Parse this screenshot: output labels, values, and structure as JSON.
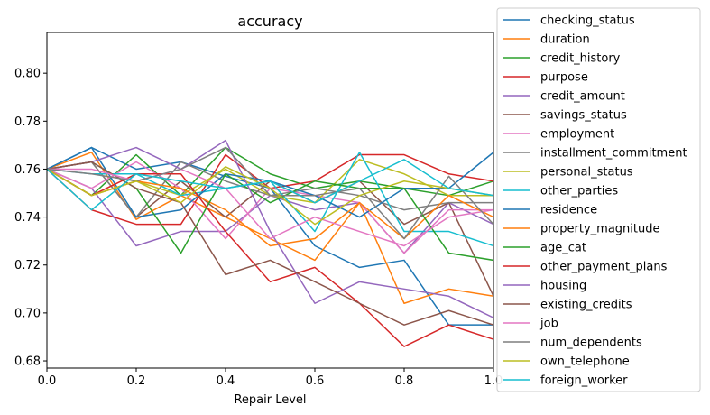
{
  "chart_data": {
    "type": "line",
    "title": "accuracy",
    "xlabel": "Repair Level",
    "ylabel": "",
    "xlim": [
      0.0,
      1.0
    ],
    "ylim": [
      0.677,
      0.817
    ],
    "xticks": [
      "0.0",
      "0.2",
      "0.4",
      "0.6",
      "0.8",
      "1.0"
    ],
    "yticks": [
      "0.68",
      "0.70",
      "0.72",
      "0.74",
      "0.76",
      "0.78",
      "0.80"
    ],
    "grid": false,
    "legend_position": "right",
    "x": [
      0.0,
      0.1,
      0.2,
      0.3,
      0.4,
      0.5,
      0.6,
      0.7,
      0.8,
      0.9,
      1.0
    ],
    "series": [
      {
        "name": "checking_status",
        "color": "#1f77b4",
        "values": [
          0.76,
          0.769,
          0.76,
          0.763,
          0.757,
          0.752,
          0.728,
          0.719,
          0.722,
          0.695,
          0.695
        ]
      },
      {
        "name": "duration",
        "color": "#ff7f0e",
        "values": [
          0.76,
          0.767,
          0.739,
          0.749,
          0.74,
          0.731,
          0.722,
          0.746,
          0.704,
          0.71,
          0.707
        ]
      },
      {
        "name": "credit_history",
        "color": "#2ca02c",
        "values": [
          0.76,
          0.749,
          0.766,
          0.749,
          0.769,
          0.758,
          0.752,
          0.755,
          0.752,
          0.749,
          0.755
        ]
      },
      {
        "name": "purpose",
        "color": "#d62728",
        "values": [
          0.76,
          0.743,
          0.737,
          0.737,
          0.766,
          0.752,
          0.755,
          0.766,
          0.766,
          0.758,
          0.755
        ]
      },
      {
        "name": "credit_amount",
        "color": "#9467bd",
        "values": [
          0.76,
          0.752,
          0.728,
          0.734,
          0.734,
          0.749,
          0.743,
          0.746,
          0.725,
          0.746,
          0.737
        ]
      },
      {
        "name": "savings_status",
        "color": "#8c564b",
        "values": [
          0.76,
          0.763,
          0.74,
          0.755,
          0.74,
          0.755,
          0.746,
          0.755,
          0.737,
          0.746,
          0.707
        ]
      },
      {
        "name": "employment",
        "color": "#e377c2",
        "values": [
          0.76,
          0.752,
          0.763,
          0.752,
          0.731,
          0.752,
          0.749,
          0.746,
          0.725,
          0.743,
          0.743
        ]
      },
      {
        "name": "installment_commitment",
        "color": "#7f7f7f",
        "values": [
          0.76,
          0.763,
          0.74,
          0.763,
          0.755,
          0.749,
          0.752,
          0.749,
          0.743,
          0.746,
          0.746
        ]
      },
      {
        "name": "personal_status",
        "color": "#bcbd22",
        "values": [
          0.76,
          0.749,
          0.755,
          0.749,
          0.76,
          0.749,
          0.746,
          0.764,
          0.758,
          0.749,
          0.749
        ]
      },
      {
        "name": "other_parties",
        "color": "#17becf",
        "values": [
          0.76,
          0.758,
          0.758,
          0.749,
          0.752,
          0.755,
          0.734,
          0.767,
          0.734,
          0.734,
          0.728
        ]
      },
      {
        "name": "residence",
        "color": "#1f77b4",
        "values": [
          0.76,
          0.769,
          0.74,
          0.743,
          0.758,
          0.755,
          0.749,
          0.74,
          0.752,
          0.752,
          0.767
        ]
      },
      {
        "name": "property_magnitude",
        "color": "#ff7f0e",
        "values": [
          0.76,
          0.749,
          0.755,
          0.752,
          0.743,
          0.728,
          0.731,
          0.746,
          0.731,
          0.749,
          0.74
        ]
      },
      {
        "name": "age_cat",
        "color": "#2ca02c",
        "values": [
          0.76,
          0.763,
          0.752,
          0.725,
          0.758,
          0.746,
          0.755,
          0.752,
          0.752,
          0.725,
          0.722
        ]
      },
      {
        "name": "other_payment_plans",
        "color": "#d62728",
        "values": [
          0.76,
          0.749,
          0.758,
          0.758,
          0.734,
          0.713,
          0.719,
          0.704,
          0.686,
          0.695,
          0.689
        ]
      },
      {
        "name": "housing",
        "color": "#9467bd",
        "values": [
          0.76,
          0.763,
          0.769,
          0.76,
          0.772,
          0.734,
          0.704,
          0.713,
          0.71,
          0.707,
          0.698
        ]
      },
      {
        "name": "existing_credits",
        "color": "#8c564b",
        "values": [
          0.76,
          0.763,
          0.752,
          0.746,
          0.716,
          0.722,
          0.713,
          0.704,
          0.695,
          0.701,
          0.695
        ]
      },
      {
        "name": "job",
        "color": "#e377c2",
        "values": [
          0.76,
          0.76,
          0.755,
          0.76,
          0.752,
          0.731,
          0.74,
          0.734,
          0.728,
          0.74,
          0.743
        ]
      },
      {
        "name": "num_dependents",
        "color": "#7f7f7f",
        "values": [
          0.76,
          0.758,
          0.755,
          0.76,
          0.769,
          0.749,
          0.749,
          0.752,
          0.731,
          0.757,
          0.737
        ]
      },
      {
        "name": "own_telephone",
        "color": "#bcbd22",
        "values": [
          0.76,
          0.749,
          0.755,
          0.746,
          0.761,
          0.752,
          0.737,
          0.749,
          0.755,
          0.752,
          0.749
        ]
      },
      {
        "name": "foreign_worker",
        "color": "#17becf",
        "values": [
          0.76,
          0.743,
          0.758,
          0.755,
          0.752,
          0.755,
          0.746,
          0.755,
          0.764,
          0.752,
          0.749
        ]
      }
    ]
  }
}
